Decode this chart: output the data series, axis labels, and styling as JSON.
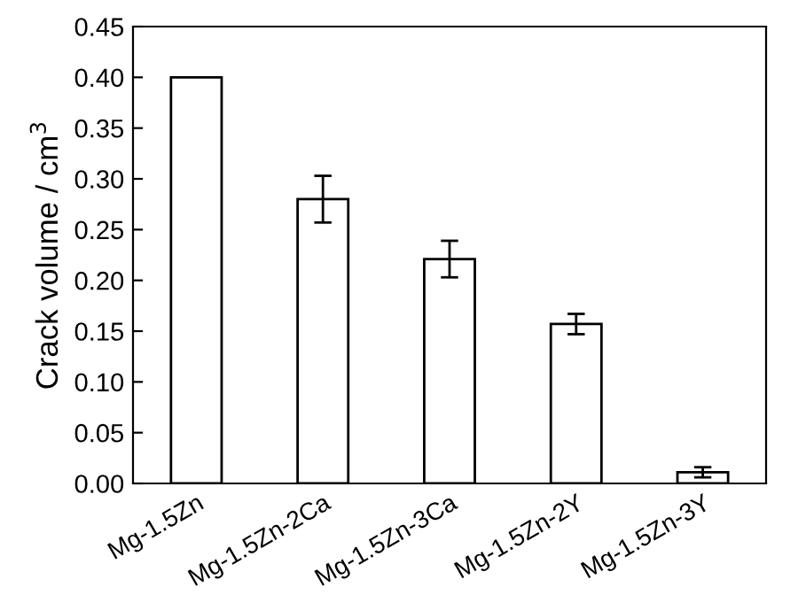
{
  "chart_data": {
    "type": "bar",
    "ylabel": "Crack volume / cm$^{3}$",
    "categories": [
      "Mg-1.5Zn",
      "Mg-1.5Zn-2Ca",
      "Mg-1.5Zn-3Ca",
      "Mg-1.5Zn-2Y",
      "Mg-1.5Zn-3Y"
    ],
    "values": [
      0.4,
      0.28,
      0.221,
      0.157,
      0.011
    ],
    "errors": [
      null,
      0.023,
      0.018,
      0.01,
      0.005
    ],
    "color": "#ffffff",
    "ylim": [
      0,
      0.45
    ],
    "yticks": [
      {
        "value": 0,
        "label": "0.00"
      },
      {
        "value": 0.05,
        "label": "0.05"
      },
      {
        "value": 0.1,
        "label": "0.10"
      },
      {
        "value": 0.15,
        "label": "0.15"
      },
      {
        "value": 0.2,
        "label": "0.20"
      },
      {
        "value": 0.25,
        "label": "0.25"
      },
      {
        "value": 0.3,
        "label": "0.30"
      },
      {
        "value": 0.35,
        "label": "0.35"
      },
      {
        "value": 0.4,
        "label": "0.40"
      },
      {
        "value": 0.45,
        "label": "0.45"
      }
    ],
    "grid": false,
    "legend": false
  }
}
